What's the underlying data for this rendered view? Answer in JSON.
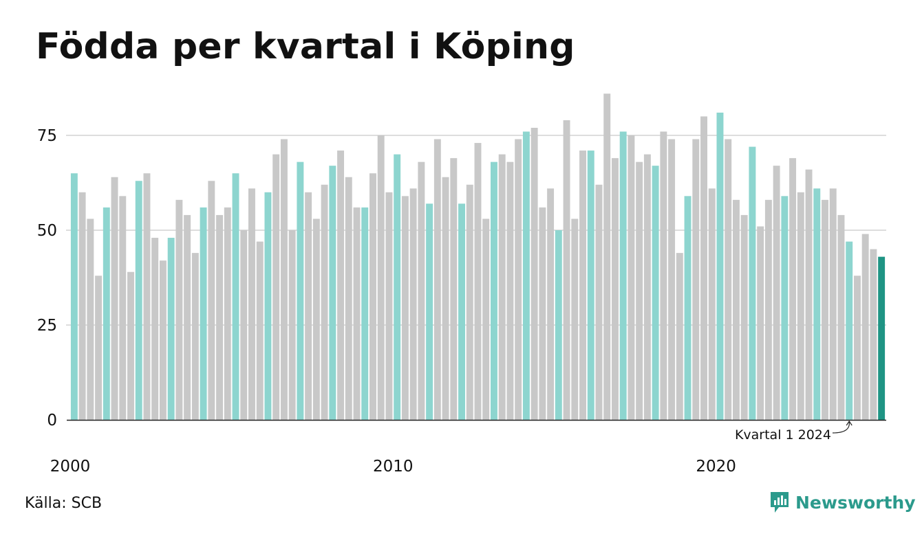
{
  "title": "Födda per kvartal i Köping",
  "source": "Källa: SCB",
  "brand": "Newsworthy",
  "colors": {
    "q1": "#8dd5cf",
    "other": "#c8c8c8",
    "latest": "#1f9484",
    "grid": "#dddddd",
    "axis": "#222222",
    "brand": "#2b9a8c"
  },
  "chart_data": {
    "type": "bar",
    "title": "Födda per kvartal i Köping",
    "xlabel": "",
    "ylabel": "",
    "ylim": [
      0,
      90
    ],
    "yticks": [
      0,
      25,
      50,
      75
    ],
    "xtick_labels": [
      "2000",
      "2010",
      "2020"
    ],
    "grid": true,
    "annotation": "Kvartal 1 2024",
    "start_year": 2000,
    "values": [
      65,
      60,
      53,
      38,
      56,
      64,
      59,
      39,
      63,
      65,
      48,
      42,
      48,
      58,
      54,
      44,
      56,
      63,
      54,
      56,
      65,
      50,
      61,
      47,
      60,
      70,
      74,
      50,
      68,
      60,
      53,
      62,
      67,
      71,
      64,
      56,
      56,
      65,
      75,
      60,
      70,
      59,
      61,
      68,
      57,
      74,
      64,
      69,
      57,
      62,
      73,
      53,
      68,
      70,
      68,
      74,
      76,
      77,
      56,
      61,
      50,
      79,
      53,
      71,
      71,
      62,
      86,
      69,
      76,
      75,
      68,
      70,
      67,
      76,
      74,
      44,
      59,
      74,
      80,
      61,
      81,
      74,
      58,
      54,
      72,
      51,
      58,
      67,
      59,
      69,
      60,
      66,
      61,
      58,
      61,
      54,
      47,
      38,
      49,
      45,
      43
    ]
  }
}
